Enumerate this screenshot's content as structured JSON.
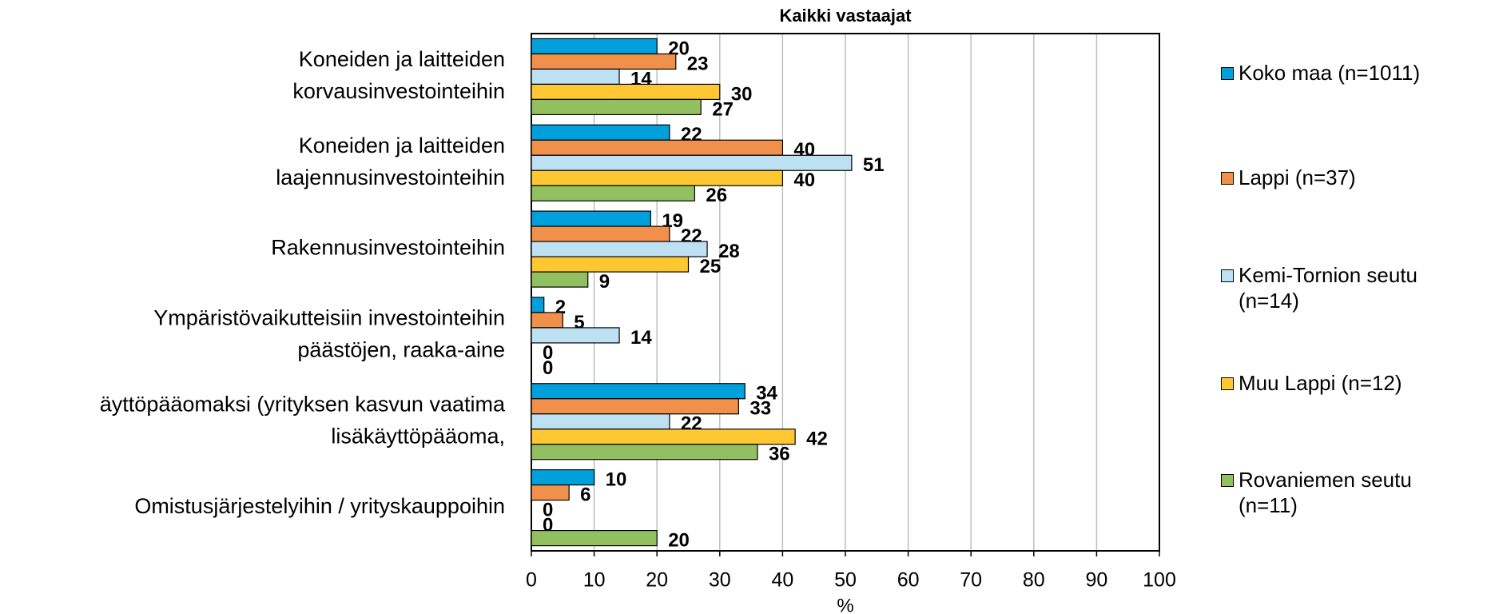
{
  "chart_data": {
    "type": "bar",
    "orientation": "horizontal",
    "title": "Kaikki vastaajat",
    "xlabel": "%",
    "categories": [
      [
        "Koneiden ja laitteiden",
        "korvausinvestointeihin"
      ],
      [
        "Koneiden ja laitteiden",
        "laajennusinvestointeihin"
      ],
      [
        "Rakennusinvestointeihin"
      ],
      [
        "Ympäristövaikutteisiin investointeihin",
        "päästöjen, raaka-aine"
      ],
      [
        "äyttöpääomaksi (yrityksen kasvun vaatima",
        "lisäkäyttöpääoma,"
      ],
      [
        "Omistusjärjestelyihin / yrityskauppoihin"
      ]
    ],
    "series": [
      {
        "name": "Koko maa (n=1011)",
        "color": "#00a0dc",
        "values": [
          20,
          22,
          19,
          2,
          34,
          10
        ]
      },
      {
        "name": "Lappi (n=37)",
        "color": "#f0904a",
        "values": [
          23,
          40,
          22,
          5,
          33,
          6
        ]
      },
      {
        "name": "Kemi-Tornion seutu (n=14)",
        "color": "#bde0f3",
        "values": [
          14,
          51,
          28,
          14,
          22,
          0
        ]
      },
      {
        "name": "Muu Lappi (n=12)",
        "color": "#ffc832",
        "values": [
          30,
          40,
          25,
          0,
          42,
          0
        ]
      },
      {
        "name": "Rovaniemen seutu (n=11)",
        "color": "#92c060",
        "values": [
          27,
          26,
          9,
          0,
          36,
          20
        ]
      }
    ],
    "xlim": [
      0,
      100
    ],
    "xticks": [
      0,
      10,
      20,
      30,
      40,
      50,
      60,
      70,
      80,
      90,
      100
    ],
    "grid": true
  }
}
